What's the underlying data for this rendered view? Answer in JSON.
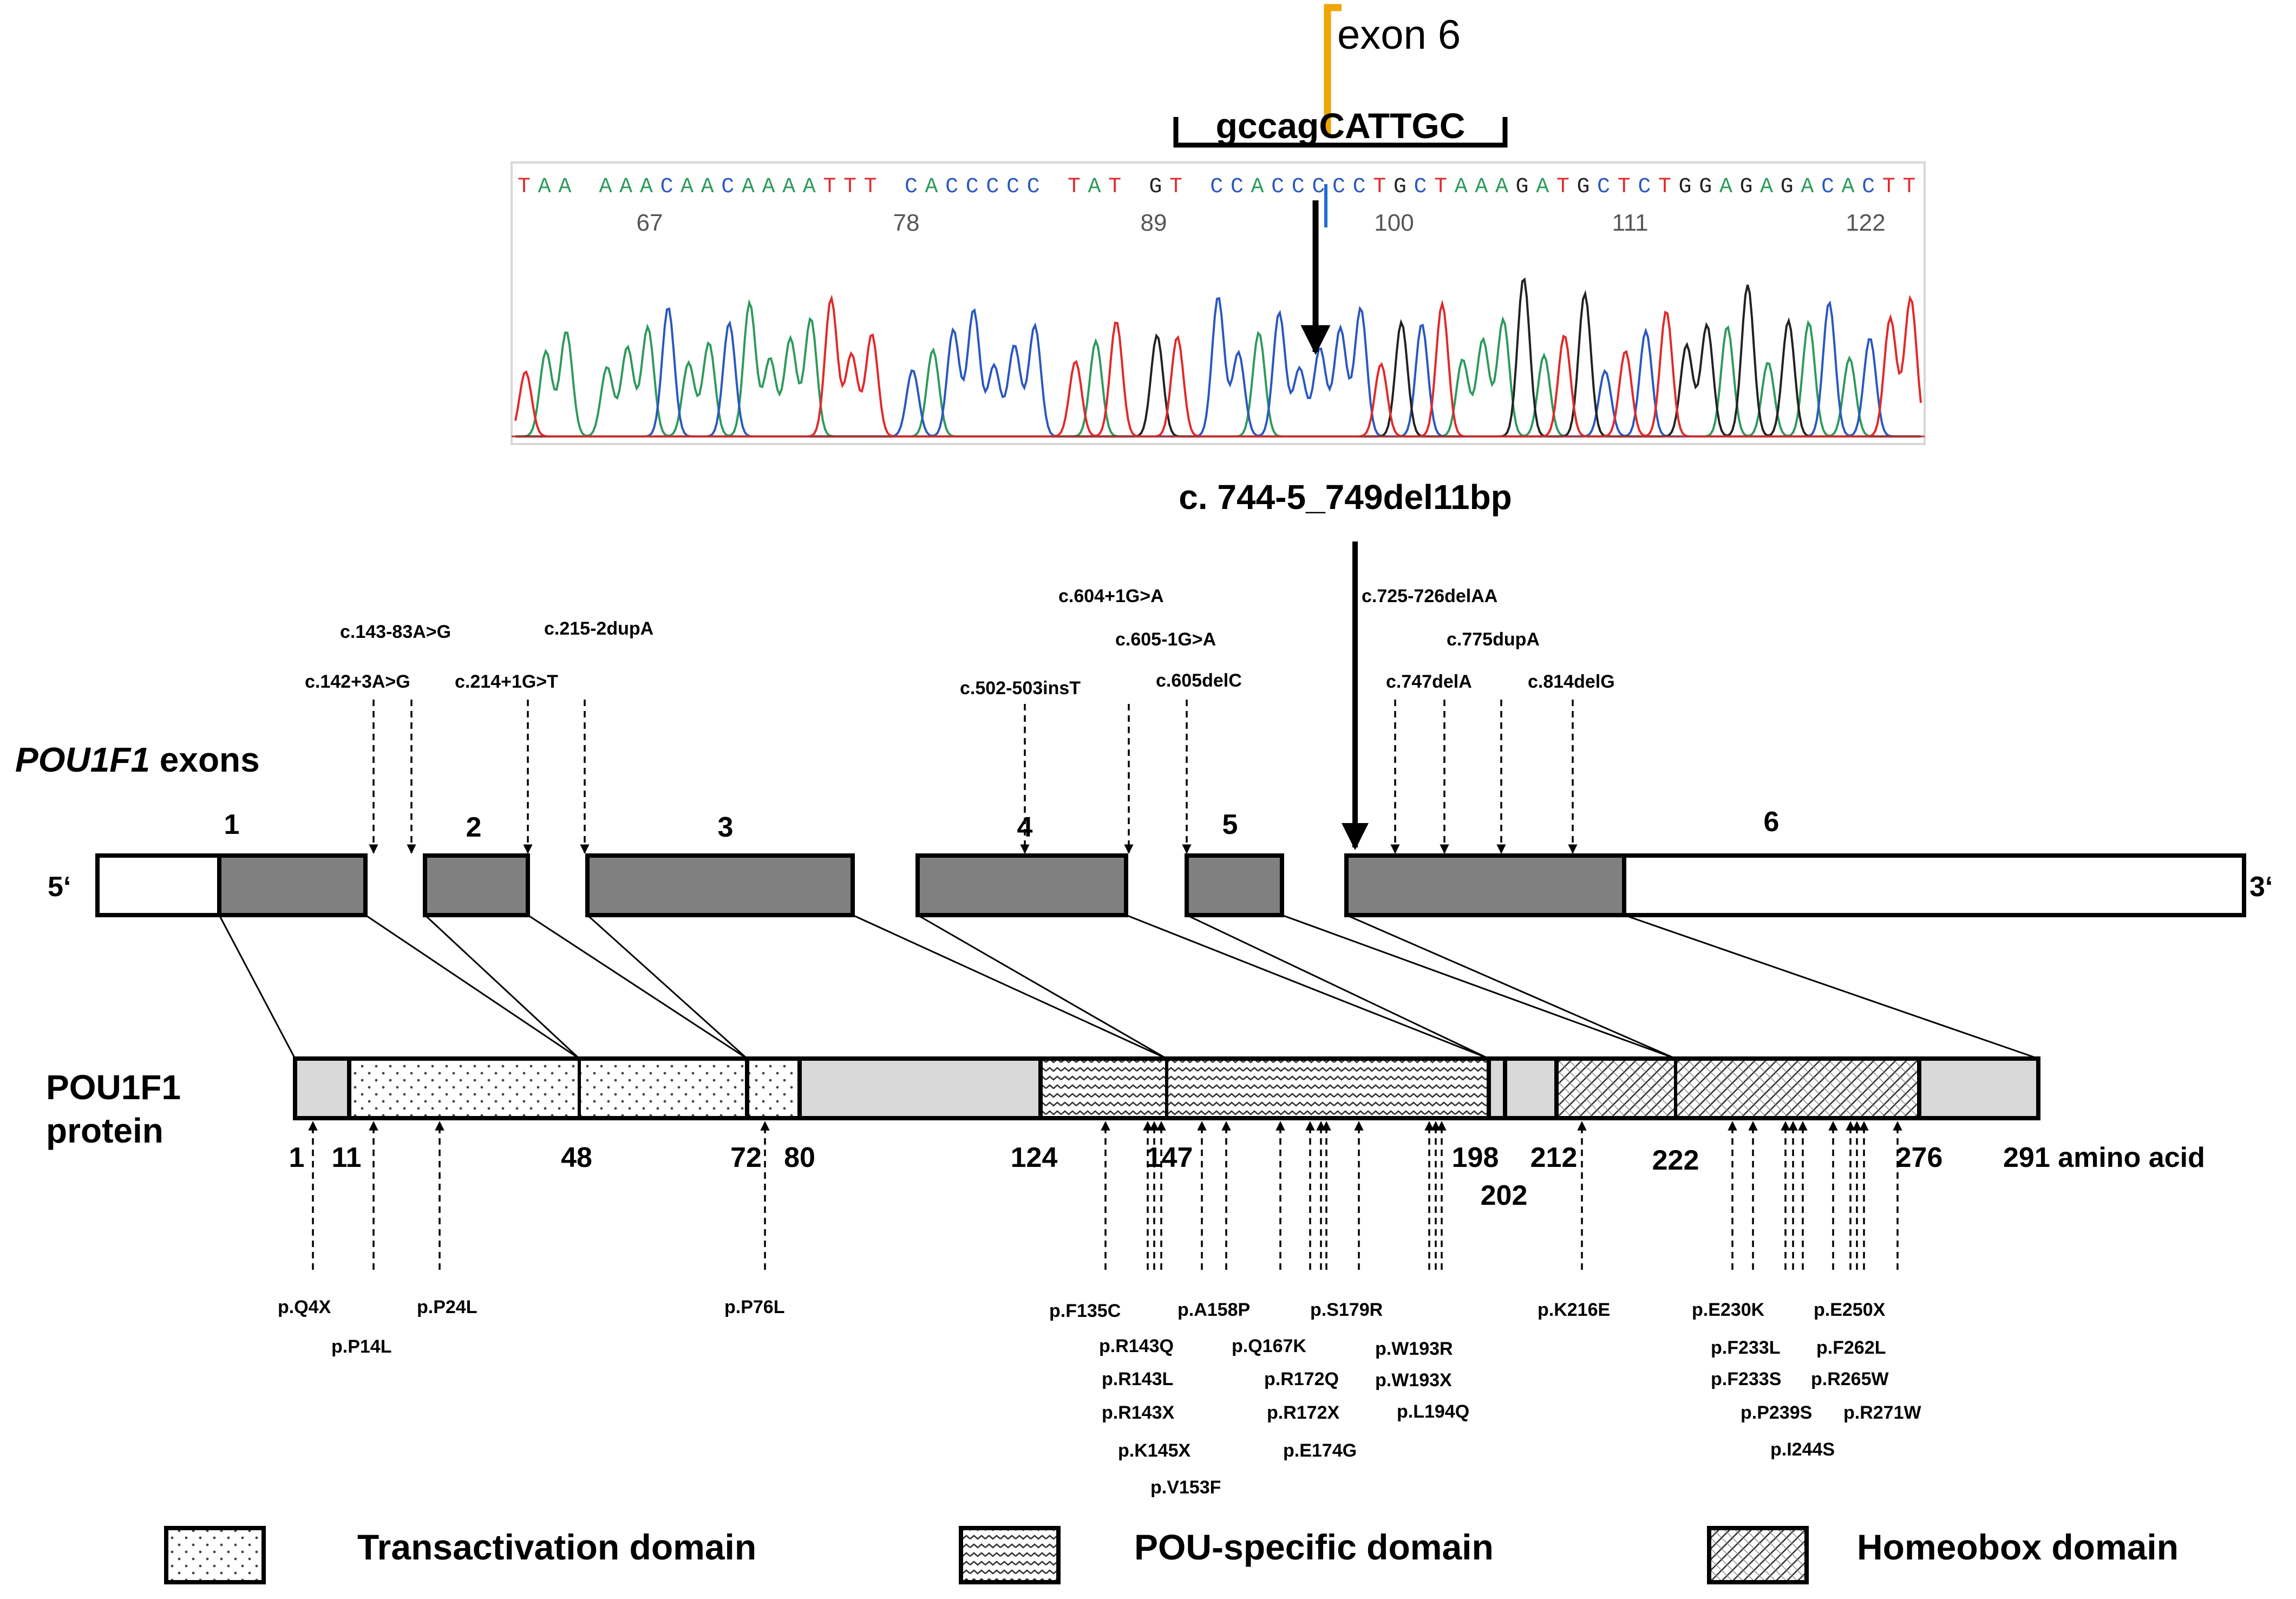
{
  "chromatogram": {
    "exon_label": "exon 6",
    "bracket_sequence": "gccagCATTGC",
    "read_sequence": "TAA AAACAACAAAATTT CACCCCC TAT GT CCACCCCCTGCTAAAGATGCTCTGGAGAGACACTT",
    "positions": [
      "67",
      "78",
      "89",
      "100",
      "111",
      "122"
    ],
    "mutation_name": "c. 744-5_749del11bp",
    "trace_colors": {
      "A": "#2e9a5b",
      "C": "#2a58c0",
      "G": "#222222",
      "T": "#e02a2a"
    },
    "exon_boundary_color": "#f0a500"
  },
  "gene": {
    "title_italic": "POU1F1",
    "title_rest": " exons",
    "five_prime": "5‘",
    "three_prime": "3‘",
    "exon_numbers": [
      "1",
      "2",
      "3",
      "4",
      "5",
      "6"
    ],
    "cdna_mutations": [
      "c.143-83A>G",
      "c.215-2dupA",
      "c.142+3A>G",
      "c.214+1G>T",
      "c.604+1G>A",
      "c.605-1G>A",
      "c.605delC",
      "c.502-503insT",
      "c.725-726delAA",
      "c.775dupA",
      "c.747delA",
      "c.814delG"
    ]
  },
  "protein": {
    "title_line1": "POU1F1",
    "title_line2": "protein",
    "positions": [
      "1",
      "11",
      "48",
      "72",
      "80",
      "124",
      "147",
      "198",
      "202",
      "212",
      "222",
      "276"
    ],
    "end_label": "291 amino acid",
    "mutations": [
      "p.Q4X",
      "p.P14L",
      "p.P24L",
      "p.P76L",
      "p.F135C",
      "p.A158P",
      "p.S179R",
      "p.R143Q",
      "p.Q167K",
      "p.W193R",
      "p.R143L",
      "p.R172Q",
      "p.W193X",
      "p.R143X",
      "p.R172X",
      "p.L194Q",
      "p.K145X",
      "p.E174G",
      "p.V153F",
      "p.K216E",
      "p.E230K",
      "p.E250X",
      "p.F233L",
      "p.F262L",
      "p.F233S",
      "p.R265W",
      "p.P239S",
      "p.R271W",
      "p.I244S"
    ]
  },
  "legend": {
    "items": [
      "Transactivation domain",
      "POU-specific domain",
      "Homeobox domain"
    ]
  }
}
